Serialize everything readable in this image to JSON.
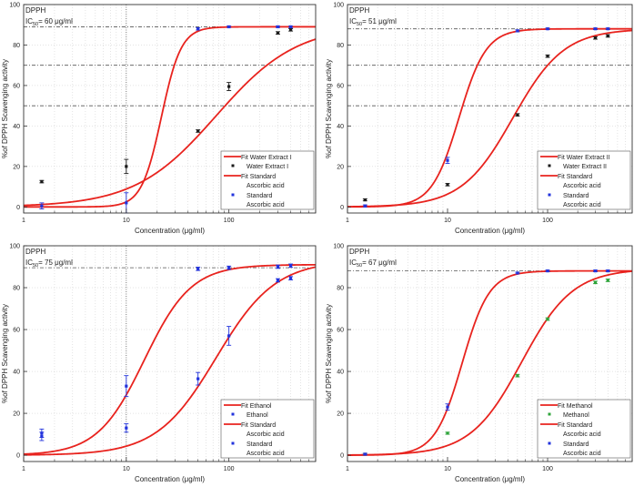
{
  "colors": {
    "fit": "#e8231e",
    "extract_marker_black": "#1a1a1a",
    "extract_marker_green": "#2ea43a",
    "standard_marker": "#2233dd",
    "grid": "#c8c8c8",
    "refline": "#555555"
  },
  "chart_data": [
    {
      "type": "scatter",
      "panel_label": "DPPH",
      "ic50": "IC",
      "ic50_sub": "50",
      "ic50_value": "= 60 μg/ml",
      "xlabel": "Concentration (μg/ml)",
      "ylabel": "%of DPPH Scavenging activity",
      "xscale": "log",
      "xlim": [
        1,
        700
      ],
      "ylim": [
        -3,
        100
      ],
      "xticks": [
        1,
        10,
        100
      ],
      "yticks": [
        0,
        20,
        40,
        60,
        80,
        100
      ],
      "hlines": [
        70,
        50,
        89
      ],
      "vlines": [
        10
      ],
      "legend": [
        "Fit Water Extract I",
        "Water Extract I",
        "Fit Standard",
        "Ascorbic acid",
        "Standard",
        "Ascorbic acid"
      ],
      "series": [
        {
          "name": "Water Extract I",
          "marker": "black",
          "x": [
            1.5,
            10,
            50,
            100,
            300,
            400
          ],
          "y": [
            12.5,
            20,
            37.5,
            59.5,
            86,
            87.5
          ],
          "err": [
            0.6,
            3.5,
            0.6,
            2,
            0.6,
            0.6
          ]
        },
        {
          "name": "Standard Ascorbic acid",
          "marker": "blue",
          "x": [
            1.5,
            10,
            50,
            100,
            300,
            400
          ],
          "y": [
            0.5,
            2,
            88,
            89,
            89,
            89
          ],
          "err": [
            1.5,
            5,
            0.6,
            0.4,
            0.4,
            0.4
          ]
        }
      ],
      "fits": [
        {
          "name": "Fit Water Extract I",
          "bottom": 0,
          "top": 90,
          "ec50": 75,
          "hill": 1.1
        },
        {
          "name": "Fit Standard Ascorbic acid",
          "bottom": 0,
          "top": 89,
          "ec50": 22,
          "hill": 4.5
        }
      ]
    },
    {
      "type": "scatter",
      "panel_label": "DPPH",
      "ic50": "IC",
      "ic50_sub": "50",
      "ic50_value": "= 51 μg/ml",
      "xlabel": "Concentration (μg/ml)",
      "ylabel": "%of DPPH Scavenging activity",
      "xscale": "log",
      "xlim": [
        1,
        700
      ],
      "ylim": [
        -3,
        100
      ],
      "xticks": [
        1,
        10,
        100
      ],
      "yticks": [
        0,
        20,
        40,
        60,
        80,
        100
      ],
      "hlines": [
        70,
        50,
        88
      ],
      "vlines": [],
      "legend": [
        "Fit Water Extract II",
        "Water Extract II",
        "Fit Standard",
        "Ascorbic acid",
        "Standard",
        "Ascorbic acid"
      ],
      "series": [
        {
          "name": "Water Extract II",
          "marker": "black",
          "x": [
            1.5,
            10,
            50,
            100,
            300,
            400
          ],
          "y": [
            3.5,
            11,
            45.5,
            74.5,
            83.5,
            84.5
          ],
          "err": [
            0.5,
            0.6,
            0.6,
            0.6,
            0.6,
            0.6
          ]
        },
        {
          "name": "Standard Ascorbic acid",
          "marker": "blue",
          "x": [
            1.5,
            10,
            50,
            100,
            300,
            400
          ],
          "y": [
            0.5,
            23,
            87,
            88,
            88,
            88
          ],
          "err": [
            0.5,
            1.5,
            0.5,
            0.4,
            0.4,
            0.4
          ]
        }
      ],
      "fits": [
        {
          "name": "Fit Water Extract II",
          "bottom": 0,
          "top": 88,
          "ec50": 45,
          "hill": 1.7
        },
        {
          "name": "Fit Standard Ascorbic acid",
          "bottom": 0,
          "top": 88,
          "ec50": 13,
          "hill": 3.2
        }
      ]
    },
    {
      "type": "scatter",
      "panel_label": "DPPH",
      "ic50": "IC",
      "ic50_sub": "50",
      "ic50_value": "= 75 μg/ml",
      "xlabel": "Concentration (μg/ml)",
      "ylabel": "%of DPPH Scavenging activity",
      "xscale": "log",
      "xlim": [
        1,
        700
      ],
      "ylim": [
        -3,
        100
      ],
      "xticks": [
        1,
        10,
        100
      ],
      "yticks": [
        0,
        20,
        40,
        60,
        80,
        100
      ],
      "hlines": [
        89.5
      ],
      "vlines": [
        10
      ],
      "legend": [
        "Fit Ethanol",
        "Ethanol",
        "Fit Standard",
        "Ascorbic acid",
        "Standard",
        "Ascorbic acid"
      ],
      "series": [
        {
          "name": "Ethanol",
          "marker": "blue",
          "x": [
            1.5,
            10,
            50,
            100,
            300,
            400
          ],
          "y": [
            10.5,
            13,
            36.5,
            57,
            83.5,
            84.5
          ],
          "err": [
            2,
            2,
            3,
            4.5,
            0.8,
            0.8
          ]
        },
        {
          "name": "Standard Ascorbic acid",
          "marker": "blue",
          "x": [
            1.5,
            10,
            50,
            100,
            300,
            400
          ],
          "y": [
            9,
            33,
            89,
            89.5,
            90,
            90.5
          ],
          "err": [
            2,
            5,
            0.8,
            0.8,
            0.8,
            0.8
          ]
        }
      ],
      "fits": [
        {
          "name": "Fit Ethanol",
          "bottom": 0,
          "top": 93,
          "ec50": 75,
          "hill": 1.5
        },
        {
          "name": "Fit Standard Ascorbic acid",
          "bottom": 0,
          "top": 91,
          "ec50": 15,
          "hill": 1.9
        }
      ]
    },
    {
      "type": "scatter",
      "panel_label": "DPPH",
      "ic50": "IC",
      "ic50_sub": "50",
      "ic50_value": "= 67 μg/ml",
      "xlabel": "Concentration (μg/ml)",
      "ylabel": "%of DPPH Scavenging activity",
      "xscale": "log",
      "xlim": [
        1,
        700
      ],
      "ylim": [
        -3,
        100
      ],
      "xticks": [
        1,
        10,
        100
      ],
      "yticks": [
        0,
        20,
        40,
        60,
        80,
        100
      ],
      "hlines": [
        88
      ],
      "vlines": [],
      "legend": [
        "Fit Methanol",
        "Methanol",
        "Fit Standard",
        "Ascorbic acid",
        "Standard",
        "Ascorbic acid"
      ],
      "series": [
        {
          "name": "Methanol",
          "marker": "green",
          "x": [
            1.5,
            10,
            50,
            100,
            300,
            400
          ],
          "y": [
            0.5,
            10.5,
            38,
            65,
            82.5,
            83.5
          ],
          "err": [
            0.4,
            0.5,
            0.6,
            0.6,
            0.6,
            0.6
          ]
        },
        {
          "name": "Standard Ascorbic acid",
          "marker": "blue",
          "x": [
            1.5,
            10,
            50,
            100,
            300,
            400
          ],
          "y": [
            0.5,
            23,
            87,
            88,
            88,
            88
          ],
          "err": [
            0.4,
            1.5,
            0.4,
            0.4,
            0.4,
            0.4
          ]
        }
      ],
      "fits": [
        {
          "name": "Fit Methanol",
          "bottom": 0,
          "top": 89,
          "ec50": 55,
          "hill": 1.7
        },
        {
          "name": "Fit Standard Ascorbic acid",
          "bottom": 0,
          "top": 88,
          "ec50": 14,
          "hill": 3.2
        }
      ]
    }
  ]
}
